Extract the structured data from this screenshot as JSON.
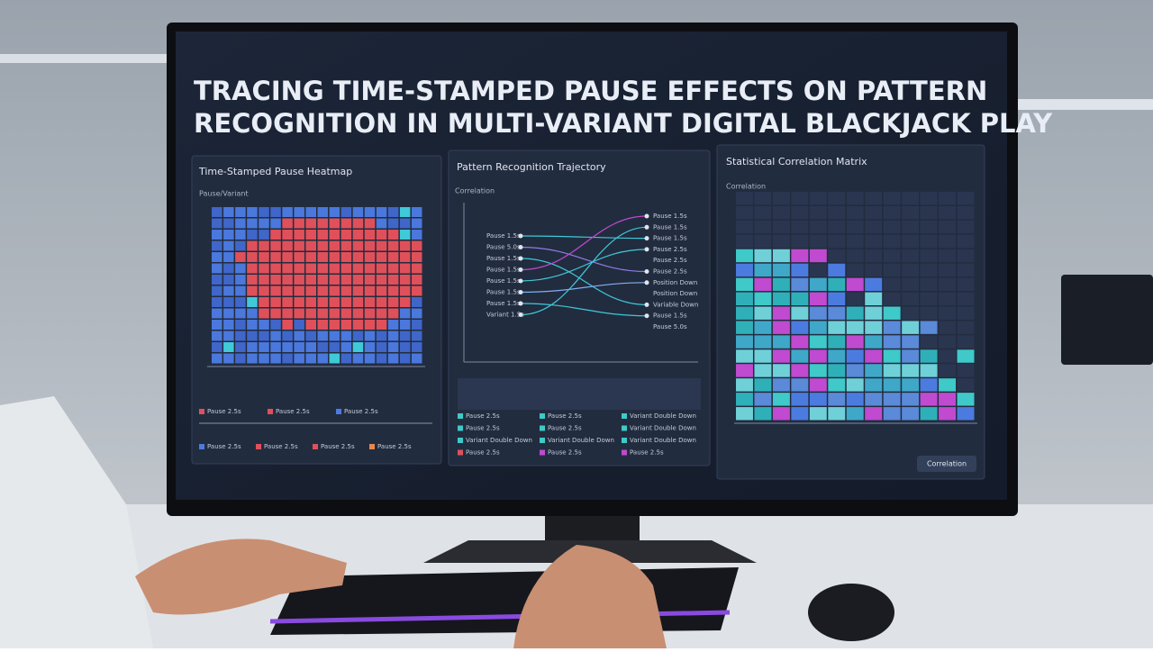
{
  "header": {
    "title_line1": "TRACING TIME-STAMPED PAUSE EFFECTS ON PATTERN",
    "title_line2": "RECOGNITION IN MULTI-VARIANT DIGITAL BLACKJACK PLAY"
  },
  "panels": [
    {
      "title": "Time-Stamped Pause Heatmap",
      "subtitle": "Pause/Variant",
      "legend": [
        {
          "label": "Pause 2.5s",
          "color": "#e0505a"
        },
        {
          "label": "Pause 2.5s",
          "color": "#e0505a"
        },
        {
          "label": "Pause 2.5s",
          "color": "#4c7be0"
        },
        {
          "label": "Pause 2.5s",
          "color": "#4c7be0"
        },
        {
          "label": "Pause 2.5s",
          "color": "#e0505a"
        },
        {
          "label": "Pause 2.5s",
          "color": "#e0505a"
        },
        {
          "label": "Pause 2.5s",
          "color": "#e8884a"
        }
      ]
    },
    {
      "title": "Pattern Recognition Trajectory",
      "subtitle": "Correlation",
      "left_labels": [
        "Pause 1.5s",
        "Pause 5.0s",
        "Pause 1.5s",
        "Pause 1.5s",
        "Pause 1.5s",
        "Pause 1.5s",
        "Pause 1.5s",
        "Variant 1.5s"
      ],
      "right_labels": [
        "Pause 1.5s",
        "Pause 1.5s",
        "Pause 1.5s",
        "Pause 2.5s",
        "Pause 2.5s",
        "Pause 2.5s",
        "Position Down",
        "Position Down",
        "Variable Down",
        "Pause 1.5s",
        "Pause 5.0s"
      ],
      "legend": [
        {
          "label": "Pause 2.5s",
          "color": "#3fc9c9"
        },
        {
          "label": "Pause 2.5s",
          "color": "#3fc9c9"
        },
        {
          "label": "Variant Double Down",
          "color": "#3fc9c9"
        },
        {
          "label": "Pause 2.5s",
          "color": "#3fc9c9"
        },
        {
          "label": "Pause 2.5s",
          "color": "#3fc9c9"
        },
        {
          "label": "Variant Double Down",
          "color": "#3fc9c9"
        },
        {
          "label": "Variant Double Down",
          "color": "#3fc9c9"
        },
        {
          "label": "Variant Double Down",
          "color": "#3fc9c9"
        },
        {
          "label": "Variant Double Down",
          "color": "#3fc9c9"
        },
        {
          "label": "Pause 2.5s",
          "color": "#e0505a"
        },
        {
          "label": "Pause 2.5s",
          "color": "#c04ad0"
        },
        {
          "label": "Pause 2.5s",
          "color": "#c04ad0"
        }
      ]
    },
    {
      "title": "Statistical Correlation Matrix",
      "subtitle": "Correlation",
      "button": "Correlation"
    }
  ]
}
